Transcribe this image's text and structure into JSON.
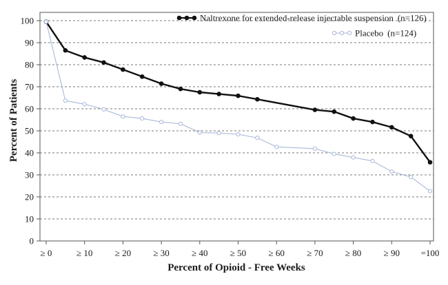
{
  "chart_data": {
    "type": "line",
    "xlabel": "Percent of Opioid - Free Weeks",
    "ylabel": "Percent of Patients",
    "x_ticks": [
      {
        "value": 0,
        "label": "≥ 0"
      },
      {
        "value": 10,
        "label": "≥ 10"
      },
      {
        "value": 20,
        "label": "≥ 20"
      },
      {
        "value": 30,
        "label": "≥ 30"
      },
      {
        "value": 40,
        "label": "≥ 40"
      },
      {
        "value": 50,
        "label": "≥ 50"
      },
      {
        "value": 60,
        "label": "≥ 60"
      },
      {
        "value": 70,
        "label": "≥ 70"
      },
      {
        "value": 80,
        "label": "≥ 80"
      },
      {
        "value": 90,
        "label": "≥ 90"
      },
      {
        "value": 100,
        "label": "=100"
      }
    ],
    "y_ticks": [
      0,
      10,
      20,
      30,
      40,
      50,
      60,
      70,
      80,
      90,
      100
    ],
    "xlim": [
      0,
      100
    ],
    "ylim": [
      0,
      100
    ],
    "grid": "horizontal dashed",
    "legend_position": "top-right",
    "series": [
      {
        "name": "Naltrexone for extended-release injectable suspension",
        "n_label": "(n=126)",
        "color": "#111111",
        "marker": "filled-circle",
        "x": [
          0,
          5,
          10,
          15,
          20,
          25,
          30,
          35,
          40,
          45,
          50,
          55,
          70,
          75,
          80,
          85,
          90,
          95,
          100
        ],
        "values": [
          99.5,
          86.5,
          83.3,
          81.0,
          77.8,
          74.6,
          71.4,
          69.0,
          67.5,
          66.7,
          65.9,
          64.3,
          59.5,
          58.7,
          55.6,
          54.0,
          51.6,
          47.6,
          35.7
        ]
      },
      {
        "name": "Placebo",
        "n_label": "(n=124)",
        "color": "#a8b8d8",
        "marker": "open-circle",
        "x": [
          0,
          5,
          10,
          15,
          20,
          25,
          30,
          35,
          40,
          45,
          50,
          55,
          60,
          70,
          75,
          80,
          85,
          90,
          95,
          100
        ],
        "values": [
          99.5,
          63.7,
          62.1,
          59.7,
          56.5,
          55.6,
          54.0,
          53.2,
          49.2,
          49.0,
          48.4,
          46.8,
          42.7,
          41.9,
          39.5,
          37.9,
          36.3,
          31.5,
          29.0,
          22.6
        ]
      }
    ]
  }
}
